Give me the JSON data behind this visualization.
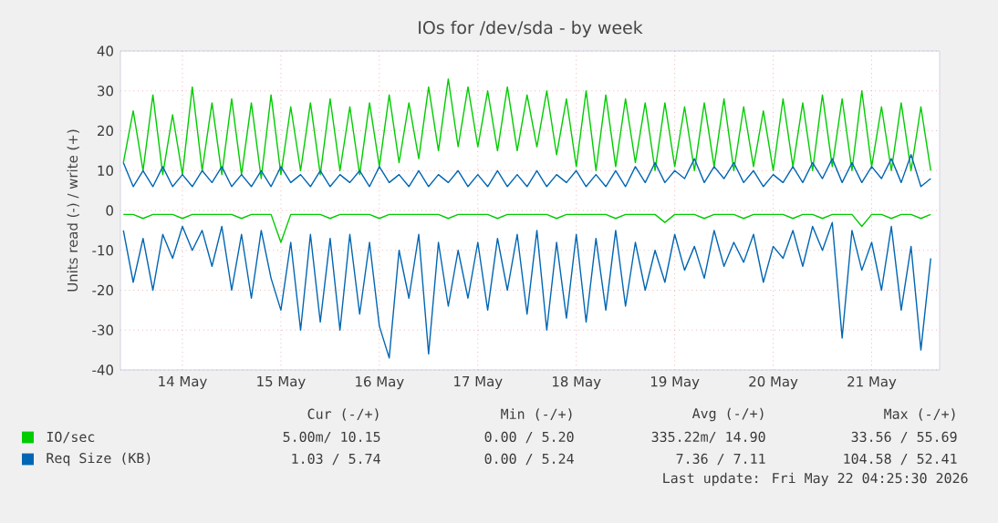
{
  "chart_data": {
    "type": "line",
    "title": "IOs for /dev/sda - by week",
    "ylabel": "Units read (-) / write (+)",
    "x": [
      "2026-05-13T21:36",
      "2026-05-14T00:00",
      "2026-05-14T02:24",
      "2026-05-14T04:48",
      "2026-05-14T07:12",
      "2026-05-14T09:36",
      "2026-05-14T12:00",
      "2026-05-14T14:24",
      "2026-05-14T16:48",
      "2026-05-14T19:12",
      "2026-05-14T21:36",
      "2026-05-15T00:00",
      "2026-05-15T02:24",
      "2026-05-15T04:48",
      "2026-05-15T07:12",
      "2026-05-15T09:36",
      "2026-05-15T12:00",
      "2026-05-15T14:24",
      "2026-05-15T16:48",
      "2026-05-15T19:12",
      "2026-05-15T21:36",
      "2026-05-16T00:00",
      "2026-05-16T02:24",
      "2026-05-16T04:48",
      "2026-05-16T07:12",
      "2026-05-16T09:36",
      "2026-05-16T12:00",
      "2026-05-16T14:24",
      "2026-05-16T16:48",
      "2026-05-16T19:12",
      "2026-05-16T21:36",
      "2026-05-17T00:00",
      "2026-05-17T02:24",
      "2026-05-17T04:48",
      "2026-05-17T07:12",
      "2026-05-17T09:36",
      "2026-05-17T12:00",
      "2026-05-17T14:24",
      "2026-05-17T16:48",
      "2026-05-17T19:12",
      "2026-05-17T21:36",
      "2026-05-18T00:00",
      "2026-05-18T02:24",
      "2026-05-18T04:48",
      "2026-05-18T07:12",
      "2026-05-18T09:36",
      "2026-05-18T12:00",
      "2026-05-18T14:24",
      "2026-05-18T16:48",
      "2026-05-18T19:12",
      "2026-05-18T21:36",
      "2026-05-19T00:00",
      "2026-05-19T02:24",
      "2026-05-19T04:48",
      "2026-05-19T07:12",
      "2026-05-19T09:36",
      "2026-05-19T12:00",
      "2026-05-19T14:24",
      "2026-05-19T16:48",
      "2026-05-19T19:12",
      "2026-05-19T21:36",
      "2026-05-20T00:00",
      "2026-05-20T02:24",
      "2026-05-20T04:48",
      "2026-05-20T07:12",
      "2026-05-20T09:36",
      "2026-05-20T12:00",
      "2026-05-20T14:24",
      "2026-05-20T16:48",
      "2026-05-20T19:12",
      "2026-05-20T21:36",
      "2026-05-21T00:00",
      "2026-05-21T02:24",
      "2026-05-21T04:48",
      "2026-05-21T07:12",
      "2026-05-21T09:36",
      "2026-05-21T12:00",
      "2026-05-21T14:24",
      "2026-05-21T16:48",
      "2026-05-21T19:12",
      "2026-05-21T21:36",
      "2026-05-22T00:00",
      "2026-05-22T02:24"
    ],
    "xlim": [
      "2026-05-13T20:53",
      "2026-05-22T04:34"
    ],
    "xticks": [
      {
        "value": "2026-05-14T12:00",
        "label": "14 May"
      },
      {
        "value": "2026-05-15T12:00",
        "label": "15 May"
      },
      {
        "value": "2026-05-16T12:00",
        "label": "16 May"
      },
      {
        "value": "2026-05-17T12:00",
        "label": "17 May"
      },
      {
        "value": "2026-05-18T12:00",
        "label": "18 May"
      },
      {
        "value": "2026-05-19T12:00",
        "label": "19 May"
      },
      {
        "value": "2026-05-20T12:00",
        "label": "20 May"
      },
      {
        "value": "2026-05-21T12:00",
        "label": "21 May"
      }
    ],
    "ylim": [
      -40,
      40
    ],
    "yticks": [
      -40,
      -30,
      -20,
      -10,
      0,
      10,
      20,
      30,
      40
    ],
    "grid": true,
    "legend": "bottom",
    "marker": "none",
    "line_style": "solid",
    "series": [
      {
        "name": "IO/sec",
        "color": "#00cc00",
        "values": [
          12,
          25,
          10,
          29,
          9,
          24,
          9,
          31,
          10,
          27,
          9,
          28,
          9,
          27,
          8,
          29,
          9,
          26,
          10,
          27,
          9,
          28,
          10,
          26,
          9,
          27,
          11,
          29,
          12,
          27,
          13,
          31,
          15,
          33,
          16,
          31,
          16,
          30,
          15,
          31,
          15,
          29,
          16,
          30,
          14,
          28,
          11,
          30,
          10,
          29,
          11,
          28,
          12,
          27,
          10,
          27,
          11,
          26,
          10,
          27,
          11,
          28,
          10,
          26,
          11,
          25,
          10,
          28,
          11,
          27,
          10,
          29,
          11,
          28,
          10,
          30,
          11,
          26,
          10,
          27,
          10,
          26,
          10
        ]
      },
      {
        "color": "#00cc00",
        "values": [
          -1,
          -1,
          -2,
          -1,
          -1,
          -1,
          -2,
          -1,
          -1,
          -1,
          -1,
          -1,
          -2,
          -1,
          -1,
          -1,
          -8,
          -1,
          -1,
          -1,
          -1,
          -2,
          -1,
          -1,
          -1,
          -1,
          -2,
          -1,
          -1,
          -1,
          -1,
          -1,
          -1,
          -2,
          -1,
          -1,
          -1,
          -1,
          -2,
          -1,
          -1,
          -1,
          -1,
          -1,
          -2,
          -1,
          -1,
          -1,
          -1,
          -1,
          -2,
          -1,
          -1,
          -1,
          -1,
          -3,
          -1,
          -1,
          -1,
          -2,
          -1,
          -1,
          -1,
          -2,
          -1,
          -1,
          -1,
          -1,
          -2,
          -1,
          -1,
          -2,
          -1,
          -1,
          -1,
          -4,
          -1,
          -1,
          -2,
          -1,
          -1,
          -2,
          -1
        ]
      },
      {
        "name": "Req Size (KB)",
        "color": "#0066b3",
        "values": [
          12,
          6,
          10,
          6,
          11,
          6,
          9,
          6,
          10,
          7,
          11,
          6,
          9,
          6,
          10,
          6,
          11,
          7,
          9,
          6,
          10,
          6,
          9,
          7,
          10,
          6,
          11,
          7,
          9,
          6,
          10,
          6,
          9,
          7,
          10,
          6,
          9,
          6,
          10,
          6,
          9,
          6,
          10,
          6,
          9,
          7,
          10,
          6,
          9,
          6,
          10,
          6,
          11,
          7,
          12,
          7,
          10,
          8,
          13,
          7,
          11,
          8,
          12,
          7,
          10,
          6,
          9,
          7,
          11,
          7,
          12,
          8,
          13,
          7,
          12,
          7,
          11,
          8,
          13,
          7,
          14,
          6,
          8
        ]
      },
      {
        "color": "#0066b3",
        "values": [
          -5,
          -18,
          -7,
          -20,
          -6,
          -12,
          -4,
          -10,
          -5,
          -14,
          -4,
          -20,
          -6,
          -22,
          -5,
          -17,
          -25,
          -8,
          -30,
          -6,
          -28,
          -7,
          -30,
          -6,
          -26,
          -8,
          -29,
          -37,
          -10,
          -22,
          -6,
          -36,
          -8,
          -24,
          -10,
          -22,
          -8,
          -25,
          -7,
          -20,
          -6,
          -26,
          -5,
          -30,
          -8,
          -27,
          -6,
          -28,
          -7,
          -25,
          -5,
          -24,
          -8,
          -20,
          -10,
          -18,
          -6,
          -15,
          -9,
          -17,
          -5,
          -14,
          -8,
          -13,
          -6,
          -18,
          -9,
          -12,
          -5,
          -14,
          -4,
          -10,
          -3,
          -32,
          -5,
          -15,
          -8,
          -20,
          -4,
          -25,
          -9,
          -35,
          -12
        ]
      }
    ],
    "annotations": [
      "Cur (-/+)",
      "Min (-/+)",
      "Avg (-/+)",
      "Max (-/+)",
      "5.00m/ 10.15",
      "0.00 / 5.20",
      "335.22m/ 14.90",
      "33.56 / 55.69",
      "1.03 / 5.74",
      "0.00 / 5.24",
      "7.36 / 7.11",
      "104.58 / 52.41",
      "Last update: Fri May 22 04:25:30 2026"
    ]
  }
}
